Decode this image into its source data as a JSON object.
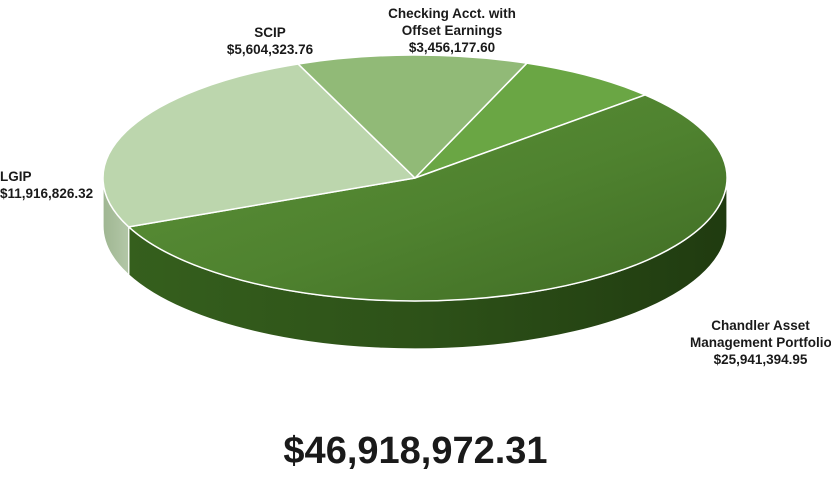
{
  "chart_data": {
    "type": "pie",
    "style": "3d",
    "total_label": "$46,918,972.31",
    "slices": [
      {
        "key": "checking",
        "label_lines": [
          "Checking Acct. with",
          "Offset Earnings"
        ],
        "value": 3456177.6,
        "value_label": "$3,456,177.60",
        "color": "#6aa644"
      },
      {
        "key": "chandler",
        "label_lines": [
          "Chandler Asset",
          "Management Portfolio"
        ],
        "value": 25941394.95,
        "value_label": "$25,941,394.95",
        "color": "#538733"
      },
      {
        "key": "lgip",
        "label_lines": [
          "LGIP"
        ],
        "value": 11916826.32,
        "value_label": "$11,916,826.32",
        "color": "#bcd6ad"
      },
      {
        "key": "scip",
        "label_lines": [
          "SCIP"
        ],
        "value": 5604323.76,
        "value_label": "$5,604,323.76",
        "color": "#91ba77"
      }
    ]
  }
}
